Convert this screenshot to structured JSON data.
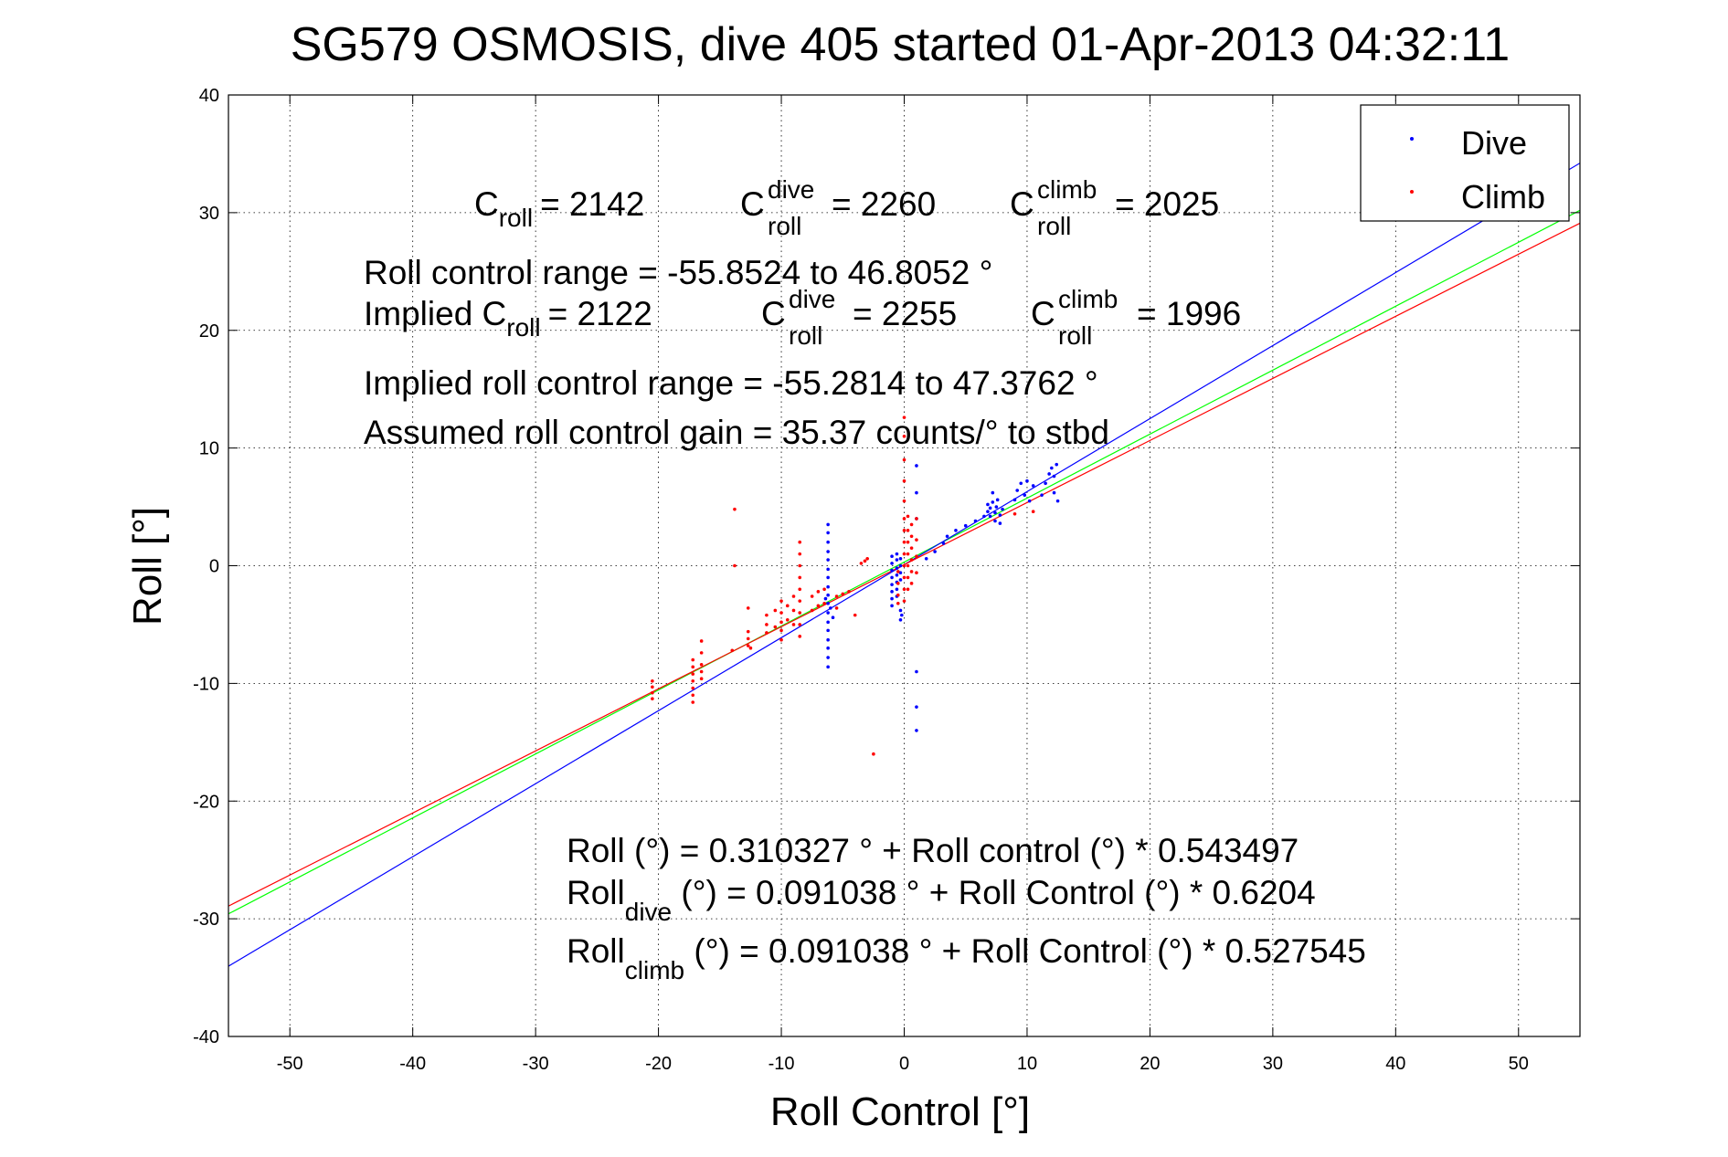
{
  "chart_data": {
    "type": "scatter",
    "title": "SG579 OSMOSIS, dive 405 started 01-Apr-2013 04:32:11",
    "xlabel": "Roll Control [°]",
    "ylabel": "Roll [°]",
    "xlim": [
      -55,
      55
    ],
    "ylim": [
      -40,
      40
    ],
    "xticks": [
      -50,
      -40,
      -30,
      -20,
      -10,
      0,
      10,
      20,
      30,
      40,
      50
    ],
    "yticks": [
      -40,
      -30,
      -20,
      -10,
      0,
      10,
      20,
      30,
      40
    ],
    "xtick_labels": [
      "-50",
      "-40",
      "-30",
      "-20",
      "-10",
      "0",
      "10",
      "20",
      "30",
      "40",
      "50"
    ],
    "ytick_labels": [
      "-40",
      "-30",
      "-20",
      "-10",
      "0",
      "10",
      "20",
      "30",
      "40"
    ],
    "grid": true,
    "legend": {
      "placement": "top-right",
      "entries": [
        {
          "label": "Dive",
          "color": "#0000ff"
        },
        {
          "label": "Climb",
          "color": "#ff0000"
        }
      ]
    },
    "fit_lines": [
      {
        "color": "#00ff00",
        "intercept": 0.310327,
        "slope": 0.543497
      },
      {
        "color": "#0000ff",
        "intercept": 0.091038,
        "slope": 0.6204
      },
      {
        "color": "#ff0000",
        "intercept": 0.091038,
        "slope": 0.527545
      }
    ],
    "series": [
      {
        "name": "Dive",
        "color": "#0000ff",
        "points": [
          [
            -6.2,
            3.5
          ],
          [
            -6.2,
            2.8
          ],
          [
            -6.2,
            2.0
          ],
          [
            -6.2,
            1.2
          ],
          [
            -6.2,
            0.5
          ],
          [
            -6.2,
            -0.3
          ],
          [
            -6.2,
            -1.0
          ],
          [
            -6.2,
            -1.8
          ],
          [
            -6.2,
            -2.5
          ],
          [
            -6.2,
            -3.2
          ],
          [
            -6.2,
            -4.0
          ],
          [
            -6.2,
            -4.8
          ],
          [
            -6.2,
            -5.5
          ],
          [
            -6.2,
            -6.3
          ],
          [
            -6.2,
            -7.0
          ],
          [
            -6.2,
            -7.8
          ],
          [
            -6.2,
            -8.6
          ],
          [
            -6.4,
            -2.8
          ],
          [
            -6.0,
            -3.6
          ],
          [
            -5.8,
            -4.4
          ],
          [
            -1.0,
            0.8
          ],
          [
            -1.0,
            0.2
          ],
          [
            -1.0,
            -0.4
          ],
          [
            -1.0,
            -1.0
          ],
          [
            -1.0,
            -1.6
          ],
          [
            -1.0,
            -2.2
          ],
          [
            -1.0,
            -2.8
          ],
          [
            -1.0,
            -3.4
          ],
          [
            -0.6,
            1.0
          ],
          [
            -0.6,
            0.5
          ],
          [
            -0.6,
            -0.2
          ],
          [
            -0.6,
            -0.8
          ],
          [
            -0.6,
            -1.4
          ],
          [
            -0.6,
            -2.0
          ],
          [
            -0.6,
            -2.6
          ],
          [
            -0.3,
            0.6
          ],
          [
            -0.3,
            0.0
          ],
          [
            -0.3,
            -0.6
          ],
          [
            -0.3,
            -1.2
          ],
          [
            -0.3,
            -3.8
          ],
          [
            -0.3,
            -4.6
          ],
          [
            -0.2,
            -4.2
          ],
          [
            1.0,
            8.5
          ],
          [
            1.0,
            6.2
          ],
          [
            1.0,
            4.0
          ],
          [
            1.0,
            -9.0
          ],
          [
            1.0,
            -12.0
          ],
          [
            1.0,
            -14.0
          ],
          [
            1.8,
            0.6
          ],
          [
            2.5,
            1.2
          ],
          [
            3.2,
            1.9
          ],
          [
            3.5,
            2.5
          ],
          [
            4.2,
            3.0
          ],
          [
            5.0,
            3.4
          ],
          [
            5.8,
            3.8
          ],
          [
            6.5,
            4.2
          ],
          [
            6.8,
            4.6
          ],
          [
            6.8,
            5.2
          ],
          [
            7.0,
            4.2
          ],
          [
            7.0,
            4.9
          ],
          [
            7.2,
            5.4
          ],
          [
            7.4,
            3.8
          ],
          [
            7.4,
            4.5
          ],
          [
            7.5,
            5.0
          ],
          [
            7.6,
            5.6
          ],
          [
            7.2,
            6.2
          ],
          [
            7.8,
            4.3
          ],
          [
            7.8,
            3.6
          ],
          [
            8.0,
            4.8
          ],
          [
            9.0,
            5.6
          ],
          [
            9.2,
            6.4
          ],
          [
            9.5,
            7.0
          ],
          [
            9.8,
            6.0
          ],
          [
            10.0,
            7.2
          ],
          [
            10.2,
            5.5
          ],
          [
            10.5,
            6.8
          ],
          [
            11.2,
            6.0
          ],
          [
            11.5,
            7.0
          ],
          [
            11.8,
            7.8
          ],
          [
            12.0,
            8.3
          ],
          [
            12.2,
            7.6
          ],
          [
            12.4,
            8.6
          ],
          [
            12.2,
            6.2
          ],
          [
            12.5,
            5.5
          ]
        ]
      },
      {
        "name": "Climb",
        "color": "#ff0000",
        "points": [
          [
            -20.5,
            -9.8
          ],
          [
            -20.5,
            -10.3
          ],
          [
            -20.5,
            -10.8
          ],
          [
            -20.5,
            -11.3
          ],
          [
            -17.2,
            -8.0
          ],
          [
            -17.2,
            -8.6
          ],
          [
            -17.2,
            -9.2
          ],
          [
            -17.2,
            -9.8
          ],
          [
            -17.2,
            -10.4
          ],
          [
            -17.2,
            -11.0
          ],
          [
            -17.2,
            -11.6
          ],
          [
            -16.5,
            -6.4
          ],
          [
            -16.5,
            -7.4
          ],
          [
            -16.5,
            -8.4
          ],
          [
            -16.5,
            -9.0
          ],
          [
            -16.5,
            -9.6
          ],
          [
            -14.0,
            -7.2
          ],
          [
            -13.8,
            4.8
          ],
          [
            -13.8,
            0.0
          ],
          [
            -12.7,
            -3.6
          ],
          [
            -12.7,
            -5.6
          ],
          [
            -12.7,
            -6.2
          ],
          [
            -12.7,
            -6.8
          ],
          [
            -12.5,
            -7.0
          ],
          [
            -11.2,
            -4.2
          ],
          [
            -11.2,
            -5.0
          ],
          [
            -11.2,
            -5.7
          ],
          [
            -10.5,
            -3.8
          ],
          [
            -10.5,
            -5.2
          ],
          [
            -10.0,
            -3.0
          ],
          [
            -10.0,
            -4.0
          ],
          [
            -10.0,
            -4.8
          ],
          [
            -10.0,
            -5.5
          ],
          [
            -10.0,
            -6.3
          ],
          [
            -9.5,
            -3.4
          ],
          [
            -9.5,
            -4.6
          ],
          [
            -9.0,
            -2.6
          ],
          [
            -9.0,
            -3.8
          ],
          [
            -9.0,
            -5.0
          ],
          [
            -8.5,
            2.0
          ],
          [
            -8.5,
            1.0
          ],
          [
            -8.5,
            0.0
          ],
          [
            -8.5,
            -1.0
          ],
          [
            -8.5,
            -2.0
          ],
          [
            -8.5,
            -3.0
          ],
          [
            -8.5,
            -4.0
          ],
          [
            -8.5,
            -5.0
          ],
          [
            -8.5,
            -6.0
          ],
          [
            -7.5,
            -2.6
          ],
          [
            -7.5,
            -3.8
          ],
          [
            -7.0,
            -2.2
          ],
          [
            -7.0,
            -3.4
          ],
          [
            -6.5,
            -2.0
          ],
          [
            -6.5,
            -3.2
          ],
          [
            -5.5,
            -2.6
          ],
          [
            -5.5,
            -3.6
          ],
          [
            -5.0,
            -2.4
          ],
          [
            -4.5,
            -2.2
          ],
          [
            -4.0,
            -4.2
          ],
          [
            -3.5,
            0.2
          ],
          [
            -3.2,
            0.4
          ],
          [
            -3.0,
            0.6
          ],
          [
            -2.5,
            -16.0
          ],
          [
            -0.5,
            -0.5
          ],
          [
            -0.5,
            -1.5
          ],
          [
            -0.5,
            -2.5
          ],
          [
            -0.5,
            -3.2
          ],
          [
            0.0,
            12.6
          ],
          [
            0.0,
            11.0
          ],
          [
            0.0,
            9.0
          ],
          [
            0.0,
            7.2
          ],
          [
            0.0,
            5.5
          ],
          [
            0.0,
            4.0
          ],
          [
            0.0,
            3.0
          ],
          [
            0.0,
            2.0
          ],
          [
            0.0,
            1.0
          ],
          [
            0.0,
            0.0
          ],
          [
            0.0,
            -1.0
          ],
          [
            0.0,
            -2.0
          ],
          [
            0.0,
            -3.0
          ],
          [
            0.3,
            4.2
          ],
          [
            0.3,
            3.0
          ],
          [
            0.3,
            2.0
          ],
          [
            0.3,
            1.0
          ],
          [
            0.3,
            0.0
          ],
          [
            0.3,
            -1.0
          ],
          [
            0.3,
            -2.0
          ],
          [
            0.6,
            3.5
          ],
          [
            0.6,
            2.5
          ],
          [
            0.6,
            1.5
          ],
          [
            0.6,
            0.5
          ],
          [
            0.6,
            -0.5
          ],
          [
            0.6,
            -1.5
          ],
          [
            1.0,
            4.0
          ],
          [
            1.0,
            2.2
          ],
          [
            1.0,
            0.8
          ],
          [
            1.0,
            -0.6
          ],
          [
            9.0,
            4.4
          ],
          [
            10.5,
            4.6
          ]
        ]
      }
    ]
  },
  "annotations": {
    "c_roll_main": "C",
    "c_roll_sub": "roll",
    "c_roll_val": "= 2142",
    "c_dive_main": "C",
    "c_dive_sup": "dive",
    "c_dive_sub": "roll",
    "c_dive_val": "= 2260",
    "c_climb_main": "C",
    "c_climb_sup": "climb",
    "c_climb_sub": "roll",
    "c_climb_val": "= 2025",
    "range_line": "Roll control range = -55.8524 to 46.8052 °",
    "implied_main": "Implied C",
    "implied_sub": "roll",
    "implied_val": "= 2122",
    "implied_dive_main": "C",
    "implied_dive_sup": "dive",
    "implied_dive_sub": "roll",
    "implied_dive_val": "= 2255",
    "implied_climb_main": "C",
    "implied_climb_sup": "climb",
    "implied_climb_sub": "roll",
    "implied_climb_val": "= 1996",
    "implied_range": "Implied roll control range = -55.2814 to 47.3762 °",
    "gain_line": "Assumed roll control gain = 35.37 counts/° to stbd",
    "fit_all": "Roll (°) = 0.310327 ° + Roll control (°) * 0.543497",
    "fit_dive_main": "Roll",
    "fit_dive_sub": "dive",
    "fit_dive_rest": " (°) = 0.091038 ° + Roll Control (°) * 0.6204",
    "fit_climb_main": "Roll",
    "fit_climb_sub": "climb",
    "fit_climb_rest": " (°) = 0.091038 ° + Roll Control (°) * 0.527545"
  }
}
